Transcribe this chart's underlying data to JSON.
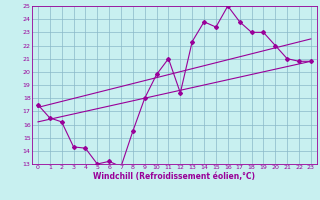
{
  "background_color": "#c8f0f0",
  "grid_color": "#8ab8c8",
  "line_color": "#990099",
  "xlim": [
    -0.5,
    23.5
  ],
  "ylim": [
    13,
    25
  ],
  "xlabel": "Windchill (Refroidissement éolien,°C)",
  "xticks": [
    0,
    1,
    2,
    3,
    4,
    5,
    6,
    7,
    8,
    9,
    10,
    11,
    12,
    13,
    14,
    15,
    16,
    17,
    18,
    19,
    20,
    21,
    22,
    23
  ],
  "yticks": [
    13,
    14,
    15,
    16,
    17,
    18,
    19,
    20,
    21,
    22,
    23,
    24,
    25
  ],
  "main_x": [
    0,
    1,
    2,
    3,
    4,
    5,
    6,
    7,
    8,
    9,
    10,
    11,
    12,
    13,
    14,
    15,
    16,
    17,
    18,
    19,
    20,
    21,
    22,
    23
  ],
  "main_y": [
    17.5,
    16.5,
    16.2,
    14.3,
    14.2,
    13.0,
    13.2,
    12.8,
    15.5,
    18.0,
    19.8,
    21.0,
    18.4,
    22.3,
    23.8,
    23.4,
    25.0,
    23.8,
    23.0,
    23.0,
    22.0,
    21.0,
    20.8,
    20.8
  ],
  "trend1_x": [
    0,
    23
  ],
  "trend1_y": [
    17.3,
    22.5
  ],
  "trend2_x": [
    0,
    23
  ],
  "trend2_y": [
    16.2,
    20.8
  ],
  "marker": "D",
  "marker_size": 2.0,
  "tick_fontsize": 4.5,
  "xlabel_fontsize": 5.5,
  "linewidth": 0.8
}
